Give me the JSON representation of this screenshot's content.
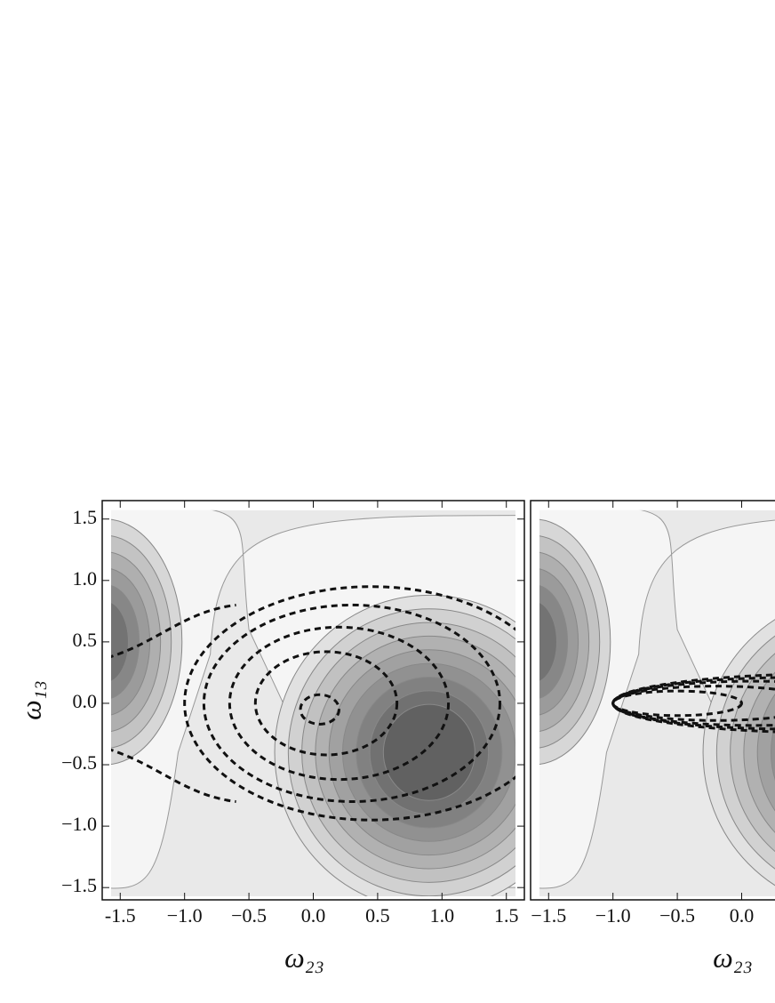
{
  "chart_data": [
    {
      "type": "contour",
      "xlabel": "ω₂₃",
      "ylabel": "ω₁₃",
      "xlim": [
        -1.64,
        1.64
      ],
      "ylim": [
        -1.6,
        1.65
      ],
      "xticks": [
        {
          "value": -1.5,
          "label": "-1.5"
        },
        {
          "value": -1,
          "label": "−1.0"
        },
        {
          "value": -0.5,
          "label": "−0.5"
        },
        {
          "value": 0,
          "label": "0.0"
        },
        0.5,
        {
          "value": 1,
          "label": "1.0"
        },
        1.5
      ],
      "yticks": [
        1.5,
        {
          "value": 1,
          "label": "1.0"
        },
        0.5,
        {
          "value": 0,
          "label": "0.0"
        },
        {
          "value": -0.5,
          "label": "−0.5"
        },
        {
          "value": -1,
          "label": "−1.0"
        },
        {
          "value": -1.5,
          "label": "−1.5"
        }
      ]
    },
    {
      "type": "contour",
      "xlabel": "ω₂₃",
      "xlim": [
        -1.64,
        1.64
      ],
      "ylim": [
        -1.6,
        1.65
      ],
      "xticks": [
        {
          "value": -1.5,
          "label": "−1.5"
        },
        {
          "value": -1,
          "label": "−1.0"
        },
        {
          "value": -0.5,
          "label": "−0.5"
        },
        {
          "value": 0,
          "label": "0.0"
        }
      ]
    }
  ]
}
